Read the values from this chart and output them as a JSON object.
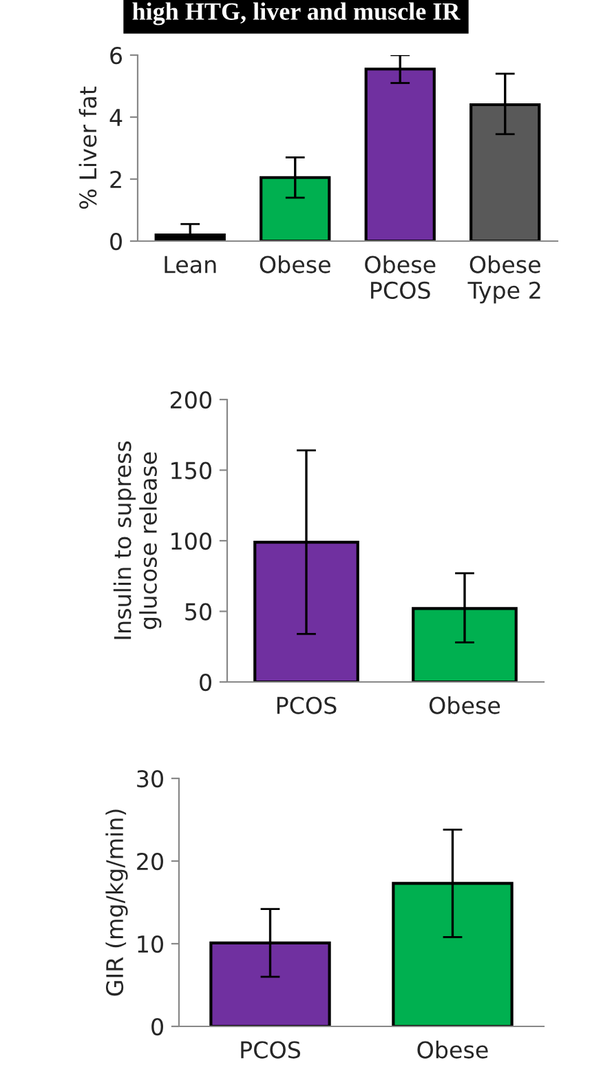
{
  "chart_data": [
    {
      "type": "bar",
      "title": "high HTG, liver and muscle IR",
      "ylabel": "% Liver fat",
      "categories": [
        "Lean",
        "Obese",
        "Obese\nPCOS",
        "Obese\nType 2"
      ],
      "values": [
        0.2,
        2.05,
        5.55,
        4.4
      ],
      "colors": [
        "#000000",
        "#00b050",
        "#7030a0",
        "#595959"
      ],
      "errors": [
        [
          0.2,
          0.55
        ],
        [
          1.4,
          2.7
        ],
        [
          5.1,
          6.0
        ],
        [
          3.45,
          5.4
        ]
      ],
      "ylim": [
        0,
        6
      ],
      "yticks": [
        0,
        2,
        4,
        6
      ],
      "grid": false
    },
    {
      "type": "bar",
      "ylabel": "Insulin to supress\nglucose release",
      "categories": [
        "PCOS",
        "Obese"
      ],
      "values": [
        99,
        52
      ],
      "colors": [
        "#7030a0",
        "#00b050"
      ],
      "errors": [
        [
          34,
          164
        ],
        [
          28,
          77
        ]
      ],
      "ylim": [
        0,
        200
      ],
      "yticks": [
        0,
        50,
        100,
        150,
        200
      ],
      "grid": false
    },
    {
      "type": "bar",
      "ylabel": "GIR (mg/kg/min)",
      "categories": [
        "PCOS",
        "Obese"
      ],
      "values": [
        10.1,
        17.3
      ],
      "colors": [
        "#7030a0",
        "#00b050"
      ],
      "errors": [
        [
          6,
          14.2
        ],
        [
          10.8,
          23.8
        ]
      ],
      "ylim": [
        0,
        30
      ],
      "yticks": [
        0,
        10,
        20,
        30
      ],
      "grid": false
    }
  ]
}
